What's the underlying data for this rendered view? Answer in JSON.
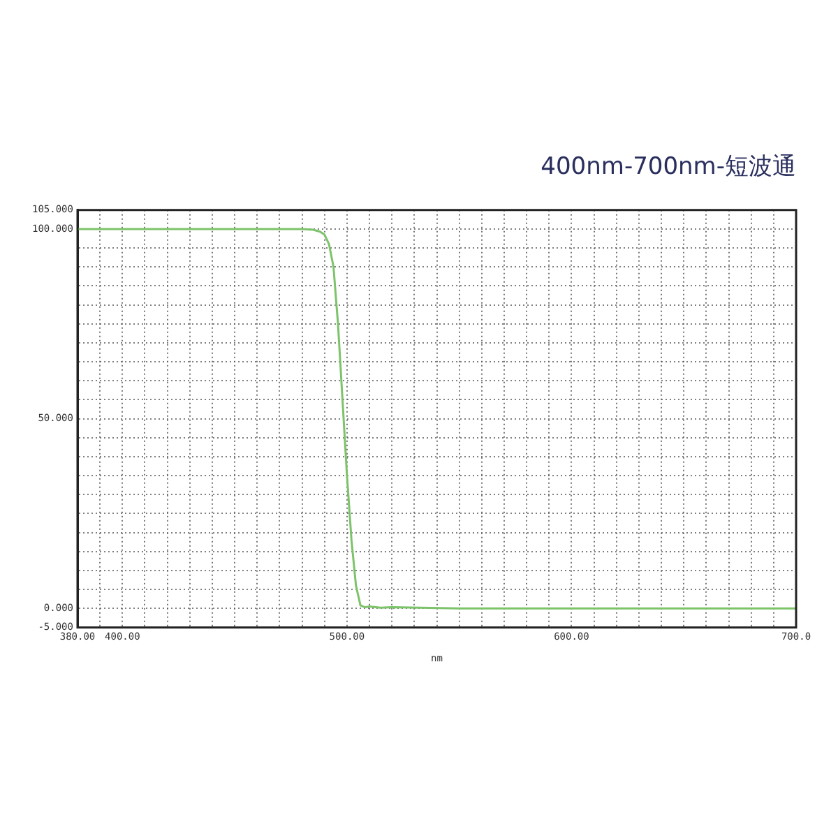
{
  "chart_data": {
    "type": "line",
    "title": "400nm-700nm-短波通",
    "xlabel": "nm",
    "x": [
      380,
      420,
      460,
      480,
      485,
      488,
      490,
      492,
      494,
      496,
      498,
      500,
      502,
      504,
      506,
      508,
      510,
      515,
      520,
      550,
      600,
      650,
      700
    ],
    "series": [
      {
        "color": "#7cc36a",
        "values": [
          100,
          100,
          100,
          100,
          99.8,
          99.3,
          98.5,
          96,
          90,
          75,
          55,
          35,
          18,
          6,
          0.8,
          0.3,
          0.5,
          0.2,
          0.3,
          0,
          0,
          0,
          0
        ]
      }
    ],
    "xlim": [
      380,
      700
    ],
    "xticks": [
      {
        "value": 380,
        "label": "380.00"
      },
      {
        "value": 390,
        "label": null
      },
      {
        "value": 400,
        "label": "400.00"
      },
      {
        "value": 410,
        "label": null
      },
      {
        "value": 420,
        "label": null
      },
      {
        "value": 430,
        "label": null
      },
      {
        "value": 440,
        "label": null
      },
      {
        "value": 450,
        "label": null
      },
      {
        "value": 460,
        "label": null
      },
      {
        "value": 470,
        "label": null
      },
      {
        "value": 480,
        "label": null
      },
      {
        "value": 490,
        "label": null
      },
      {
        "value": 500,
        "label": "500.00"
      },
      {
        "value": 510,
        "label": null
      },
      {
        "value": 520,
        "label": null
      },
      {
        "value": 530,
        "label": null
      },
      {
        "value": 540,
        "label": null
      },
      {
        "value": 550,
        "label": null
      },
      {
        "value": 560,
        "label": null
      },
      {
        "value": 570,
        "label": null
      },
      {
        "value": 580,
        "label": null
      },
      {
        "value": 590,
        "label": null
      },
      {
        "value": 600,
        "label": "600.00"
      },
      {
        "value": 610,
        "label": null
      },
      {
        "value": 620,
        "label": null
      },
      {
        "value": 630,
        "label": null
      },
      {
        "value": 640,
        "label": null
      },
      {
        "value": 650,
        "label": null
      },
      {
        "value": 660,
        "label": null
      },
      {
        "value": 670,
        "label": null
      },
      {
        "value": 680,
        "label": null
      },
      {
        "value": 690,
        "label": null
      },
      {
        "value": 700,
        "label": "700.0"
      }
    ],
    "ylim": [
      -5,
      105
    ],
    "yticks": [
      {
        "value": -5,
        "label": "-5.000"
      },
      {
        "value": 0,
        "label": "0.000"
      },
      {
        "value": 5,
        "label": null
      },
      {
        "value": 10,
        "label": null
      },
      {
        "value": 15,
        "label": null
      },
      {
        "value": 20,
        "label": null
      },
      {
        "value": 25,
        "label": null
      },
      {
        "value": 30,
        "label": null
      },
      {
        "value": 35,
        "label": null
      },
      {
        "value": 40,
        "label": null
      },
      {
        "value": 45,
        "label": null
      },
      {
        "value": 50,
        "label": "50.000"
      },
      {
        "value": 55,
        "label": null
      },
      {
        "value": 60,
        "label": null
      },
      {
        "value": 65,
        "label": null
      },
      {
        "value": 70,
        "label": null
      },
      {
        "value": 75,
        "label": null
      },
      {
        "value": 80,
        "label": null
      },
      {
        "value": 85,
        "label": null
      },
      {
        "value": 90,
        "label": null
      },
      {
        "value": 95,
        "label": null
      },
      {
        "value": 100,
        "label": "100.000"
      },
      {
        "value": 105,
        "label": "105.000"
      }
    ],
    "grid": true,
    "legend": false,
    "marker": "none",
    "line_style": "solid"
  }
}
